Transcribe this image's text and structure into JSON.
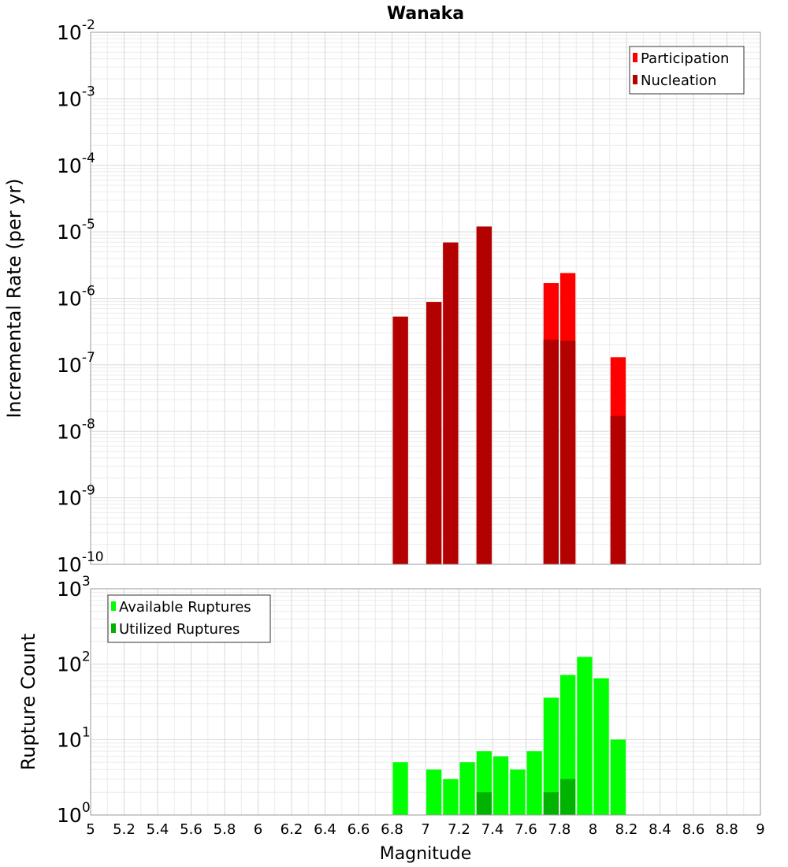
{
  "chart_data": [
    {
      "type": "bar",
      "title": "Wanaka",
      "xlabel": "",
      "ylabel": "Incremental Rate (per yr)",
      "y_scale": "log",
      "ylim_exp": [
        -10,
        -2
      ],
      "xlim": [
        5,
        9
      ],
      "bar_width": 0.1,
      "grid": true,
      "legend_position": "top-right",
      "series": [
        {
          "name": "Participation",
          "color": "#ff0000",
          "x": [
            6.85,
            7.05,
            7.15,
            7.35,
            7.75,
            7.85,
            8.15
          ],
          "values": [
            5.3e-07,
            8.8e-07,
            6.9e-06,
            1.2e-05,
            1.7e-06,
            2.4e-06,
            1.3e-07
          ]
        },
        {
          "name": "Nucleation",
          "color": "#b30000",
          "x": [
            6.85,
            7.05,
            7.15,
            7.35,
            7.75,
            7.85,
            8.15
          ],
          "values": [
            5.3e-07,
            8.8e-07,
            6.9e-06,
            1.2e-05,
            2.4e-07,
            2.3e-07,
            1.7e-08
          ]
        }
      ]
    },
    {
      "type": "bar",
      "title": "",
      "xlabel": "Magnitude",
      "ylabel": "Rupture Count",
      "y_scale": "log",
      "ylim_exp": [
        0,
        3
      ],
      "xlim": [
        5,
        9
      ],
      "bar_width": 0.1,
      "x_ticks": [
        "5",
        "5.2",
        "5.4",
        "5.6",
        "5.8",
        "6",
        "6.2",
        "6.4",
        "6.6",
        "6.8",
        "7",
        "7.2",
        "7.4",
        "7.6",
        "7.8",
        "8",
        "8.2",
        "8.4",
        "8.6",
        "8.8",
        "9"
      ],
      "grid": true,
      "legend_position": "top-left",
      "series": [
        {
          "name": "Available Ruptures",
          "color": "#00ff00",
          "x": [
            6.85,
            7.05,
            7.15,
            7.25,
            7.35,
            7.45,
            7.55,
            7.65,
            7.75,
            7.85,
            7.95,
            8.05,
            8.15
          ],
          "values": [
            5,
            4,
            3,
            5,
            7,
            6,
            4,
            7,
            36,
            72,
            125,
            65,
            10
          ]
        },
        {
          "name": "Utilized Ruptures",
          "color": "#00b300",
          "x": [
            6.85,
            7.05,
            7.15,
            7.35,
            7.75,
            7.85,
            8.15
          ],
          "values": [
            1,
            1,
            1,
            2,
            2,
            3,
            1
          ]
        }
      ]
    }
  ]
}
